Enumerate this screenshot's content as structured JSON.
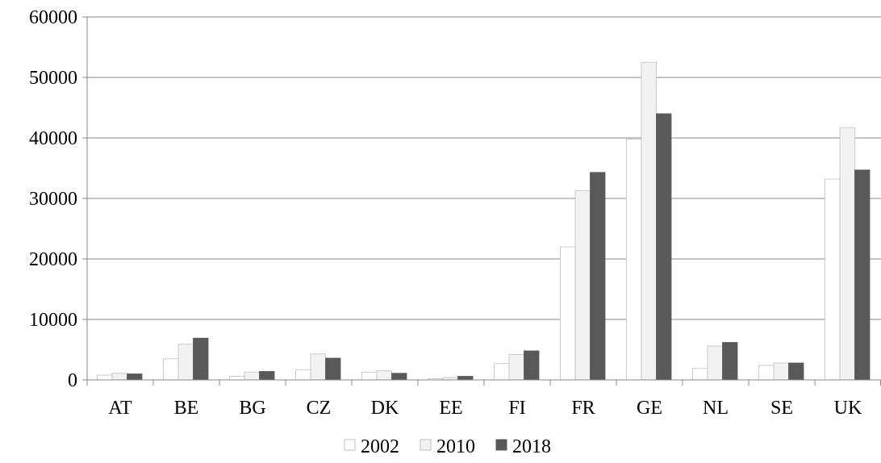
{
  "chart_data": {
    "type": "bar",
    "categories": [
      "AT",
      "BE",
      "BG",
      "CZ",
      "DK",
      "EE",
      "FI",
      "FR",
      "GE",
      "NL",
      "SE",
      "UK"
    ],
    "series": [
      {
        "name": "2002",
        "values": [
          800,
          3500,
          600,
          1700,
          1300,
          200,
          2700,
          22000,
          39800,
          1900,
          2400,
          33200
        ],
        "color": "#ffffff"
      },
      {
        "name": "2010",
        "values": [
          1100,
          5900,
          1300,
          4300,
          1500,
          400,
          4200,
          31300,
          52500,
          5600,
          2800,
          41700
        ],
        "color": "#f2f2f2"
      },
      {
        "name": "2018",
        "values": [
          1000,
          6900,
          1400,
          3600,
          1100,
          600,
          4800,
          34300,
          44000,
          6200,
          2800,
          34700
        ],
        "color": "#595959"
      }
    ],
    "title": "",
    "xlabel": "",
    "ylabel": "",
    "ylim": [
      0,
      60000
    ],
    "yticks": [
      "0",
      "10000",
      "20000",
      "30000",
      "40000",
      "50000",
      "60000"
    ],
    "grid": true,
    "legend_position": "bottom",
    "colors": {
      "gridline": "#888888",
      "axis": "#888888",
      "bar_border": "#bfbfbf"
    }
  }
}
